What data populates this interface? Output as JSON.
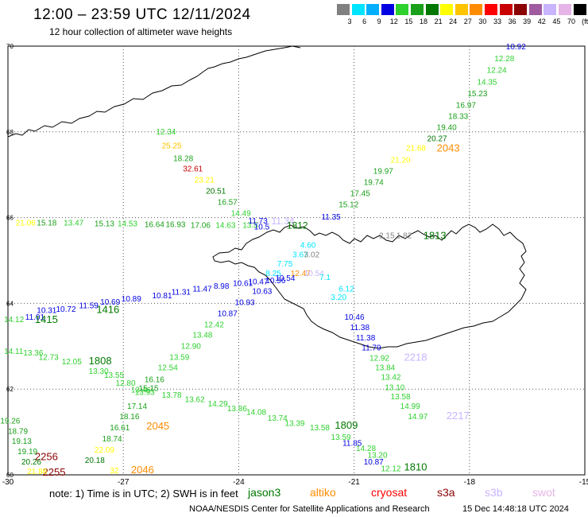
{
  "header": {
    "title": "12:00 – 23:59 UTC 12/11/2024",
    "subtitle": "12 hour collection of altimeter wave heights"
  },
  "scale": {
    "labels": [
      "3",
      "6",
      "9",
      "12",
      "15",
      "18",
      "21",
      "24",
      "27",
      "30",
      "33",
      "36",
      "39",
      "42",
      "45",
      "70",
      "(ft)"
    ],
    "colors": [
      "#808080",
      "#00e5ff",
      "#00b0ff",
      "#0000e0",
      "#2ed12e",
      "#1aa01a",
      "#007800",
      "#ffff00",
      "#ffc400",
      "#ff8c00",
      "#ff0000",
      "#c80000",
      "#8b0000",
      "#a05aa0",
      "#c8b4ff",
      "#e6b4e6",
      "#000000"
    ]
  },
  "axes": {
    "lon_labels": [
      "-30",
      "-27",
      "-24",
      "-21",
      "-18",
      "-15"
    ],
    "lat_labels": [
      "70",
      "68",
      "66",
      "64",
      "62",
      "60"
    ]
  },
  "footer": {
    "note": "note:  1) Time is in UTC;  2) SWH is in feet",
    "satellites": [
      {
        "name": "jason3",
        "color": "#007800"
      },
      {
        "name": "altiko",
        "color": "#ff8c00"
      },
      {
        "name": "cryosat",
        "color": "#ff0000"
      },
      {
        "name": "s3a",
        "color": "#8b0000"
      },
      {
        "name": "s3b",
        "color": "#c8b4ff"
      },
      {
        "name": "swot",
        "color": "#e6b4e6"
      }
    ],
    "credit": "NOAA/NESDIS Center for Satellite Applications and Research",
    "timestamp": "15 Dec 14:48:18 UTC 2024"
  },
  "observations": [
    {
      "text": "10.92",
      "lon": -17.05,
      "lat": 69.93,
      "color": "#0000e0"
    },
    {
      "text": "12.28",
      "lon": -17.35,
      "lat": 69.65,
      "color": "#2ed12e"
    },
    {
      "text": "12.24",
      "lon": -17.55,
      "lat": 69.38,
      "color": "#2ed12e"
    },
    {
      "text": "14.35",
      "lon": -17.8,
      "lat": 69.1,
      "color": "#2ed12e"
    },
    {
      "text": "15.23",
      "lon": -18.05,
      "lat": 68.83,
      "color": "#1aa01a"
    },
    {
      "text": "16.97",
      "lon": -18.35,
      "lat": 68.56,
      "color": "#1aa01a"
    },
    {
      "text": "18.33",
      "lon": -18.55,
      "lat": 68.3,
      "color": "#1aa01a"
    },
    {
      "text": "19.40",
      "lon": -18.85,
      "lat": 68.04,
      "color": "#1aa01a"
    },
    {
      "text": "20.27",
      "lon": -19.1,
      "lat": 67.78,
      "color": "#007800"
    },
    {
      "text": "21.68",
      "lon": -19.65,
      "lat": 67.56,
      "color": "#ffff00"
    },
    {
      "text": "2043",
      "lon": -18.85,
      "lat": 67.54,
      "color": "#ff8c00",
      "size": 13
    },
    {
      "text": "21.20",
      "lon": -20.05,
      "lat": 67.28,
      "color": "#ffff00"
    },
    {
      "text": "19.97",
      "lon": -20.5,
      "lat": 67.02,
      "color": "#1aa01a"
    },
    {
      "text": "19.74",
      "lon": -20.75,
      "lat": 66.76,
      "color": "#1aa01a"
    },
    {
      "text": "17.45",
      "lon": -21.1,
      "lat": 66.5,
      "color": "#1aa01a"
    },
    {
      "text": "15.12",
      "lon": -21.4,
      "lat": 66.24,
      "color": "#1aa01a"
    },
    {
      "text": "11.35",
      "lon": -21.85,
      "lat": 65.96,
      "color": "#0000e0"
    },
    {
      "text": "12.34",
      "lon": -26.15,
      "lat": 67.94,
      "color": "#2ed12e"
    },
    {
      "text": "25.25",
      "lon": -26.0,
      "lat": 67.62,
      "color": "#ffc400"
    },
    {
      "text": "18.28",
      "lon": -25.7,
      "lat": 67.32,
      "color": "#1aa01a"
    },
    {
      "text": "32.61",
      "lon": -25.45,
      "lat": 67.08,
      "color": "#c80000"
    },
    {
      "text": "23.21",
      "lon": -25.15,
      "lat": 66.82,
      "color": "#ffff00"
    },
    {
      "text": "20.51",
      "lon": -24.85,
      "lat": 66.56,
      "color": "#007800"
    },
    {
      "text": "16.57",
      "lon": -24.55,
      "lat": 66.3,
      "color": "#1aa01a"
    },
    {
      "text": "14.49",
      "lon": -24.2,
      "lat": 66.04,
      "color": "#2ed12e"
    },
    {
      "text": "21.06",
      "lon": -29.8,
      "lat": 65.82,
      "color": "#ffff00"
    },
    {
      "text": "15.18",
      "lon": -29.25,
      "lat": 65.82,
      "color": "#1aa01a"
    },
    {
      "text": "13.47",
      "lon": -28.55,
      "lat": 65.82,
      "color": "#2ed12e"
    },
    {
      "text": "15.13",
      "lon": -27.75,
      "lat": 65.8,
      "color": "#1aa01a"
    },
    {
      "text": "14.53",
      "lon": -27.15,
      "lat": 65.8,
      "color": "#2ed12e"
    },
    {
      "text": "16.64",
      "lon": -26.45,
      "lat": 65.78,
      "color": "#1aa01a"
    },
    {
      "text": "16.93",
      "lon": -25.9,
      "lat": 65.78,
      "color": "#1aa01a"
    },
    {
      "text": "17.06",
      "lon": -25.25,
      "lat": 65.76,
      "color": "#1aa01a"
    },
    {
      "text": "14.63",
      "lon": -24.6,
      "lat": 65.76,
      "color": "#2ed12e"
    },
    {
      "text": "13.5",
      "lon": -23.9,
      "lat": 65.76,
      "color": "#2ed12e"
    },
    {
      "text": "11.73",
      "lon": -23.75,
      "lat": 65.86,
      "color": "#0000e0"
    },
    {
      "text": "10.5",
      "lon": -23.6,
      "lat": 65.72,
      "color": "#0000e0"
    },
    {
      "text": "11.34",
      "lon": -23.15,
      "lat": 65.84,
      "color": "#c8b4ff",
      "size": 12
    },
    {
      "text": "1812",
      "lon": -22.75,
      "lat": 65.74,
      "color": "#007800",
      "size": 12
    },
    {
      "text": "2.15",
      "lon": -20.35,
      "lat": 65.52,
      "color": "#808080"
    },
    {
      "text": "1.82",
      "lon": -19.9,
      "lat": 65.52,
      "color": "#808080"
    },
    {
      "text": "1813",
      "lon": -19.2,
      "lat": 65.5,
      "color": "#007800",
      "size": 13
    },
    {
      "text": "4.60",
      "lon": -22.4,
      "lat": 65.3,
      "color": "#00e5ff"
    },
    {
      "text": "3.67",
      "lon": -22.6,
      "lat": 65.07,
      "color": "#00e5ff"
    },
    {
      "text": "3.02",
      "lon": -22.3,
      "lat": 65.07,
      "color": "#808080"
    },
    {
      "text": "7.75",
      "lon": -23.0,
      "lat": 64.86,
      "color": "#00e5ff"
    },
    {
      "text": "8.25",
      "lon": -23.3,
      "lat": 64.64,
      "color": "#00e5ff"
    },
    {
      "text": "12.47",
      "lon": -22.65,
      "lat": 64.64,
      "color": "#ff8c00"
    },
    {
      "text": "10.54",
      "lon": -22.3,
      "lat": 64.64,
      "color": "#c8b4ff"
    },
    {
      "text": "7.1",
      "lon": -21.9,
      "lat": 64.55,
      "color": "#00e5ff"
    },
    {
      "text": "10.54",
      "lon": -23.05,
      "lat": 64.53,
      "color": "#0000e0"
    },
    {
      "text": "10.56",
      "lon": -23.3,
      "lat": 64.47,
      "color": "#0000e0"
    },
    {
      "text": "10.47",
      "lon": -23.75,
      "lat": 64.44,
      "color": "#0000e0"
    },
    {
      "text": "10.61",
      "lon": -24.15,
      "lat": 64.41,
      "color": "#0000e0"
    },
    {
      "text": "8.98",
      "lon": -24.65,
      "lat": 64.34,
      "color": "#0000e0"
    },
    {
      "text": "11.47",
      "lon": -25.2,
      "lat": 64.28,
      "color": "#0000e0"
    },
    {
      "text": "11.31",
      "lon": -25.75,
      "lat": 64.2,
      "color": "#0000e0"
    },
    {
      "text": "10.81",
      "lon": -26.25,
      "lat": 64.12,
      "color": "#0000e0"
    },
    {
      "text": "10.89",
      "lon": -27.05,
      "lat": 64.04,
      "color": "#0000e0"
    },
    {
      "text": "10.69",
      "lon": -27.6,
      "lat": 63.97,
      "color": "#0000e0"
    },
    {
      "text": "11.59",
      "lon": -28.15,
      "lat": 63.89,
      "color": "#0000e0"
    },
    {
      "text": "10.72",
      "lon": -28.75,
      "lat": 63.8,
      "color": "#0000e0"
    },
    {
      "text": "10.31",
      "lon": -29.25,
      "lat": 63.78,
      "color": "#0000e0"
    },
    {
      "text": "11.01",
      "lon": -29.55,
      "lat": 63.62,
      "color": "#0000e0"
    },
    {
      "text": "14.12",
      "lon": -30.1,
      "lat": 63.56,
      "color": "#2ed12e"
    },
    {
      "text": "1415",
      "lon": -29.3,
      "lat": 63.54,
      "color": "#007800",
      "size": 13
    },
    {
      "text": "1416",
      "lon": -27.7,
      "lat": 63.78,
      "color": "#007800",
      "size": 13
    },
    {
      "text": "6.12",
      "lon": -21.4,
      "lat": 64.28,
      "color": "#00e5ff"
    },
    {
      "text": "3.20",
      "lon": -21.6,
      "lat": 64.08,
      "color": "#00e5ff"
    },
    {
      "text": "10.63",
      "lon": -23.65,
      "lat": 64.22,
      "color": "#0000e0"
    },
    {
      "text": "10.93",
      "lon": -24.1,
      "lat": 63.96,
      "color": "#0000e0"
    },
    {
      "text": "10.87",
      "lon": -24.55,
      "lat": 63.7,
      "color": "#0000e0"
    },
    {
      "text": "12.42",
      "lon": -24.9,
      "lat": 63.44,
      "color": "#2ed12e"
    },
    {
      "text": "13.48",
      "lon": -25.2,
      "lat": 63.2,
      "color": "#2ed12e"
    },
    {
      "text": "12.90",
      "lon": -25.5,
      "lat": 62.94,
      "color": "#2ed12e"
    },
    {
      "text": "13.59",
      "lon": -25.8,
      "lat": 62.68,
      "color": "#2ed12e"
    },
    {
      "text": "12.54",
      "lon": -26.1,
      "lat": 62.44,
      "color": "#2ed12e"
    },
    {
      "text": "16.16",
      "lon": -26.45,
      "lat": 62.16,
      "color": "#1aa01a"
    },
    {
      "text": "15.15",
      "lon": -26.6,
      "lat": 61.96,
      "color": "#1aa01a"
    },
    {
      "text": "17.14",
      "lon": -26.9,
      "lat": 61.54,
      "color": "#1aa01a"
    },
    {
      "text": "18.16",
      "lon": -27.1,
      "lat": 61.3,
      "color": "#1aa01a"
    },
    {
      "text": "16.61",
      "lon": -27.35,
      "lat": 61.04,
      "color": "#1aa01a"
    },
    {
      "text": "2045",
      "lon": -26.4,
      "lat": 61.06,
      "color": "#ff8c00",
      "size": 13
    },
    {
      "text": "18.74",
      "lon": -27.55,
      "lat": 60.78,
      "color": "#1aa01a"
    },
    {
      "text": "22.09",
      "lon": -27.75,
      "lat": 60.52,
      "color": "#ffff00"
    },
    {
      "text": "20.18",
      "lon": -28.0,
      "lat": 60.28,
      "color": "#007800"
    },
    {
      "text": "2046",
      "lon": -26.8,
      "lat": 60.04,
      "color": "#ff8c00",
      "size": 13
    },
    {
      "text": "32",
      "lon": -27.35,
      "lat": 60.04,
      "color": "#ffff00"
    },
    {
      "text": "2255",
      "lon": -29.1,
      "lat": 59.98,
      "color": "#8b0000",
      "size": 13
    },
    {
      "text": "2256",
      "lon": -29.3,
      "lat": 60.34,
      "color": "#8b0000",
      "size": 13
    },
    {
      "text": "14.11",
      "lon": -30.1,
      "lat": 62.82,
      "color": "#2ed12e"
    },
    {
      "text": "13.36",
      "lon": -29.6,
      "lat": 62.78,
      "color": "#2ed12e"
    },
    {
      "text": "12.73",
      "lon": -29.2,
      "lat": 62.68,
      "color": "#2ed12e"
    },
    {
      "text": "12.05",
      "lon": -28.6,
      "lat": 62.58,
      "color": "#2ed12e"
    },
    {
      "text": "1808",
      "lon": -27.9,
      "lat": 62.58,
      "color": "#007800",
      "size": 13
    },
    {
      "text": "13.30",
      "lon": -27.9,
      "lat": 62.36,
      "color": "#2ed12e"
    },
    {
      "text": "13.55",
      "lon": -27.5,
      "lat": 62.26,
      "color": "#2ed12e"
    },
    {
      "text": "12.80",
      "lon": -27.2,
      "lat": 62.08,
      "color": "#2ed12e"
    },
    {
      "text": "13.46",
      "lon": -26.8,
      "lat": 61.92,
      "color": "#2ed12e"
    },
    {
      "text": "13.93",
      "lon": -26.7,
      "lat": 61.86,
      "color": "#2ed12e"
    },
    {
      "text": "13.78",
      "lon": -26.0,
      "lat": 61.8,
      "color": "#2ed12e"
    },
    {
      "text": "13.62",
      "lon": -25.4,
      "lat": 61.7,
      "color": "#2ed12e"
    },
    {
      "text": "14.29",
      "lon": -24.8,
      "lat": 61.6,
      "color": "#2ed12e"
    },
    {
      "text": "13.86",
      "lon": -24.3,
      "lat": 61.48,
      "color": "#2ed12e"
    },
    {
      "text": "14.08",
      "lon": -23.8,
      "lat": 61.4,
      "color": "#2ed12e"
    },
    {
      "text": "13.74",
      "lon": -23.25,
      "lat": 61.26,
      "color": "#2ed12e"
    },
    {
      "text": "13.39",
      "lon": -22.8,
      "lat": 61.14,
      "color": "#2ed12e"
    },
    {
      "text": "13.58",
      "lon": -22.15,
      "lat": 61.04,
      "color": "#2ed12e"
    },
    {
      "text": "1809",
      "lon": -21.5,
      "lat": 61.08,
      "color": "#007800",
      "size": 13
    },
    {
      "text": "13.59",
      "lon": -21.6,
      "lat": 60.82,
      "color": "#2ed12e"
    },
    {
      "text": "11.85",
      "lon": -21.3,
      "lat": 60.68,
      "color": "#0000e0"
    },
    {
      "text": "14.28",
      "lon": -20.95,
      "lat": 60.56,
      "color": "#2ed12e"
    },
    {
      "text": "13.20",
      "lon": -20.65,
      "lat": 60.4,
      "color": "#2ed12e"
    },
    {
      "text": "10.87",
      "lon": -20.75,
      "lat": 60.24,
      "color": "#0000e0"
    },
    {
      "text": "12.12",
      "lon": -20.3,
      "lat": 60.08,
      "color": "#2ed12e"
    },
    {
      "text": "1810",
      "lon": -19.7,
      "lat": 60.1,
      "color": "#007800",
      "size": 13
    },
    {
      "text": "19.26",
      "lon": -30.2,
      "lat": 61.2,
      "color": "#1aa01a"
    },
    {
      "text": "18.79",
      "lon": -30.0,
      "lat": 60.96,
      "color": "#1aa01a"
    },
    {
      "text": "19.13",
      "lon": -29.9,
      "lat": 60.72,
      "color": "#1aa01a"
    },
    {
      "text": "19.19",
      "lon": -29.75,
      "lat": 60.48,
      "color": "#1aa01a"
    },
    {
      "text": "20.26",
      "lon": -29.65,
      "lat": 60.24,
      "color": "#007800"
    },
    {
      "text": "21.88",
      "lon": -29.5,
      "lat": 60.02,
      "color": "#ffff00"
    },
    {
      "text": "10.46",
      "lon": -21.25,
      "lat": 63.62,
      "color": "#0000e0"
    },
    {
      "text": "11.38",
      "lon": -21.1,
      "lat": 63.38,
      "color": "#0000e0"
    },
    {
      "text": "11.38",
      "lon": -20.95,
      "lat": 63.14,
      "color": "#0000e0"
    },
    {
      "text": "11.79",
      "lon": -20.8,
      "lat": 62.9,
      "color": "#0000e0"
    },
    {
      "text": "12.92",
      "lon": -20.6,
      "lat": 62.66,
      "color": "#2ed12e"
    },
    {
      "text": "2218",
      "lon": -19.7,
      "lat": 62.66,
      "color": "#c8b4ff",
      "size": 13
    },
    {
      "text": "13.84",
      "lon": -20.45,
      "lat": 62.44,
      "color": "#2ed12e"
    },
    {
      "text": "13.42",
      "lon": -20.3,
      "lat": 62.22,
      "color": "#2ed12e"
    },
    {
      "text": "13.10",
      "lon": -20.2,
      "lat": 61.98,
      "color": "#2ed12e"
    },
    {
      "text": "13.58",
      "lon": -20.05,
      "lat": 61.76,
      "color": "#2ed12e"
    },
    {
      "text": "14.99",
      "lon": -19.8,
      "lat": 61.54,
      "color": "#2ed12e"
    },
    {
      "text": "14.97",
      "lon": -19.6,
      "lat": 61.3,
      "color": "#2ed12e"
    },
    {
      "text": "2217",
      "lon": -18.6,
      "lat": 61.3,
      "color": "#c8b4ff",
      "size": 13
    }
  ]
}
